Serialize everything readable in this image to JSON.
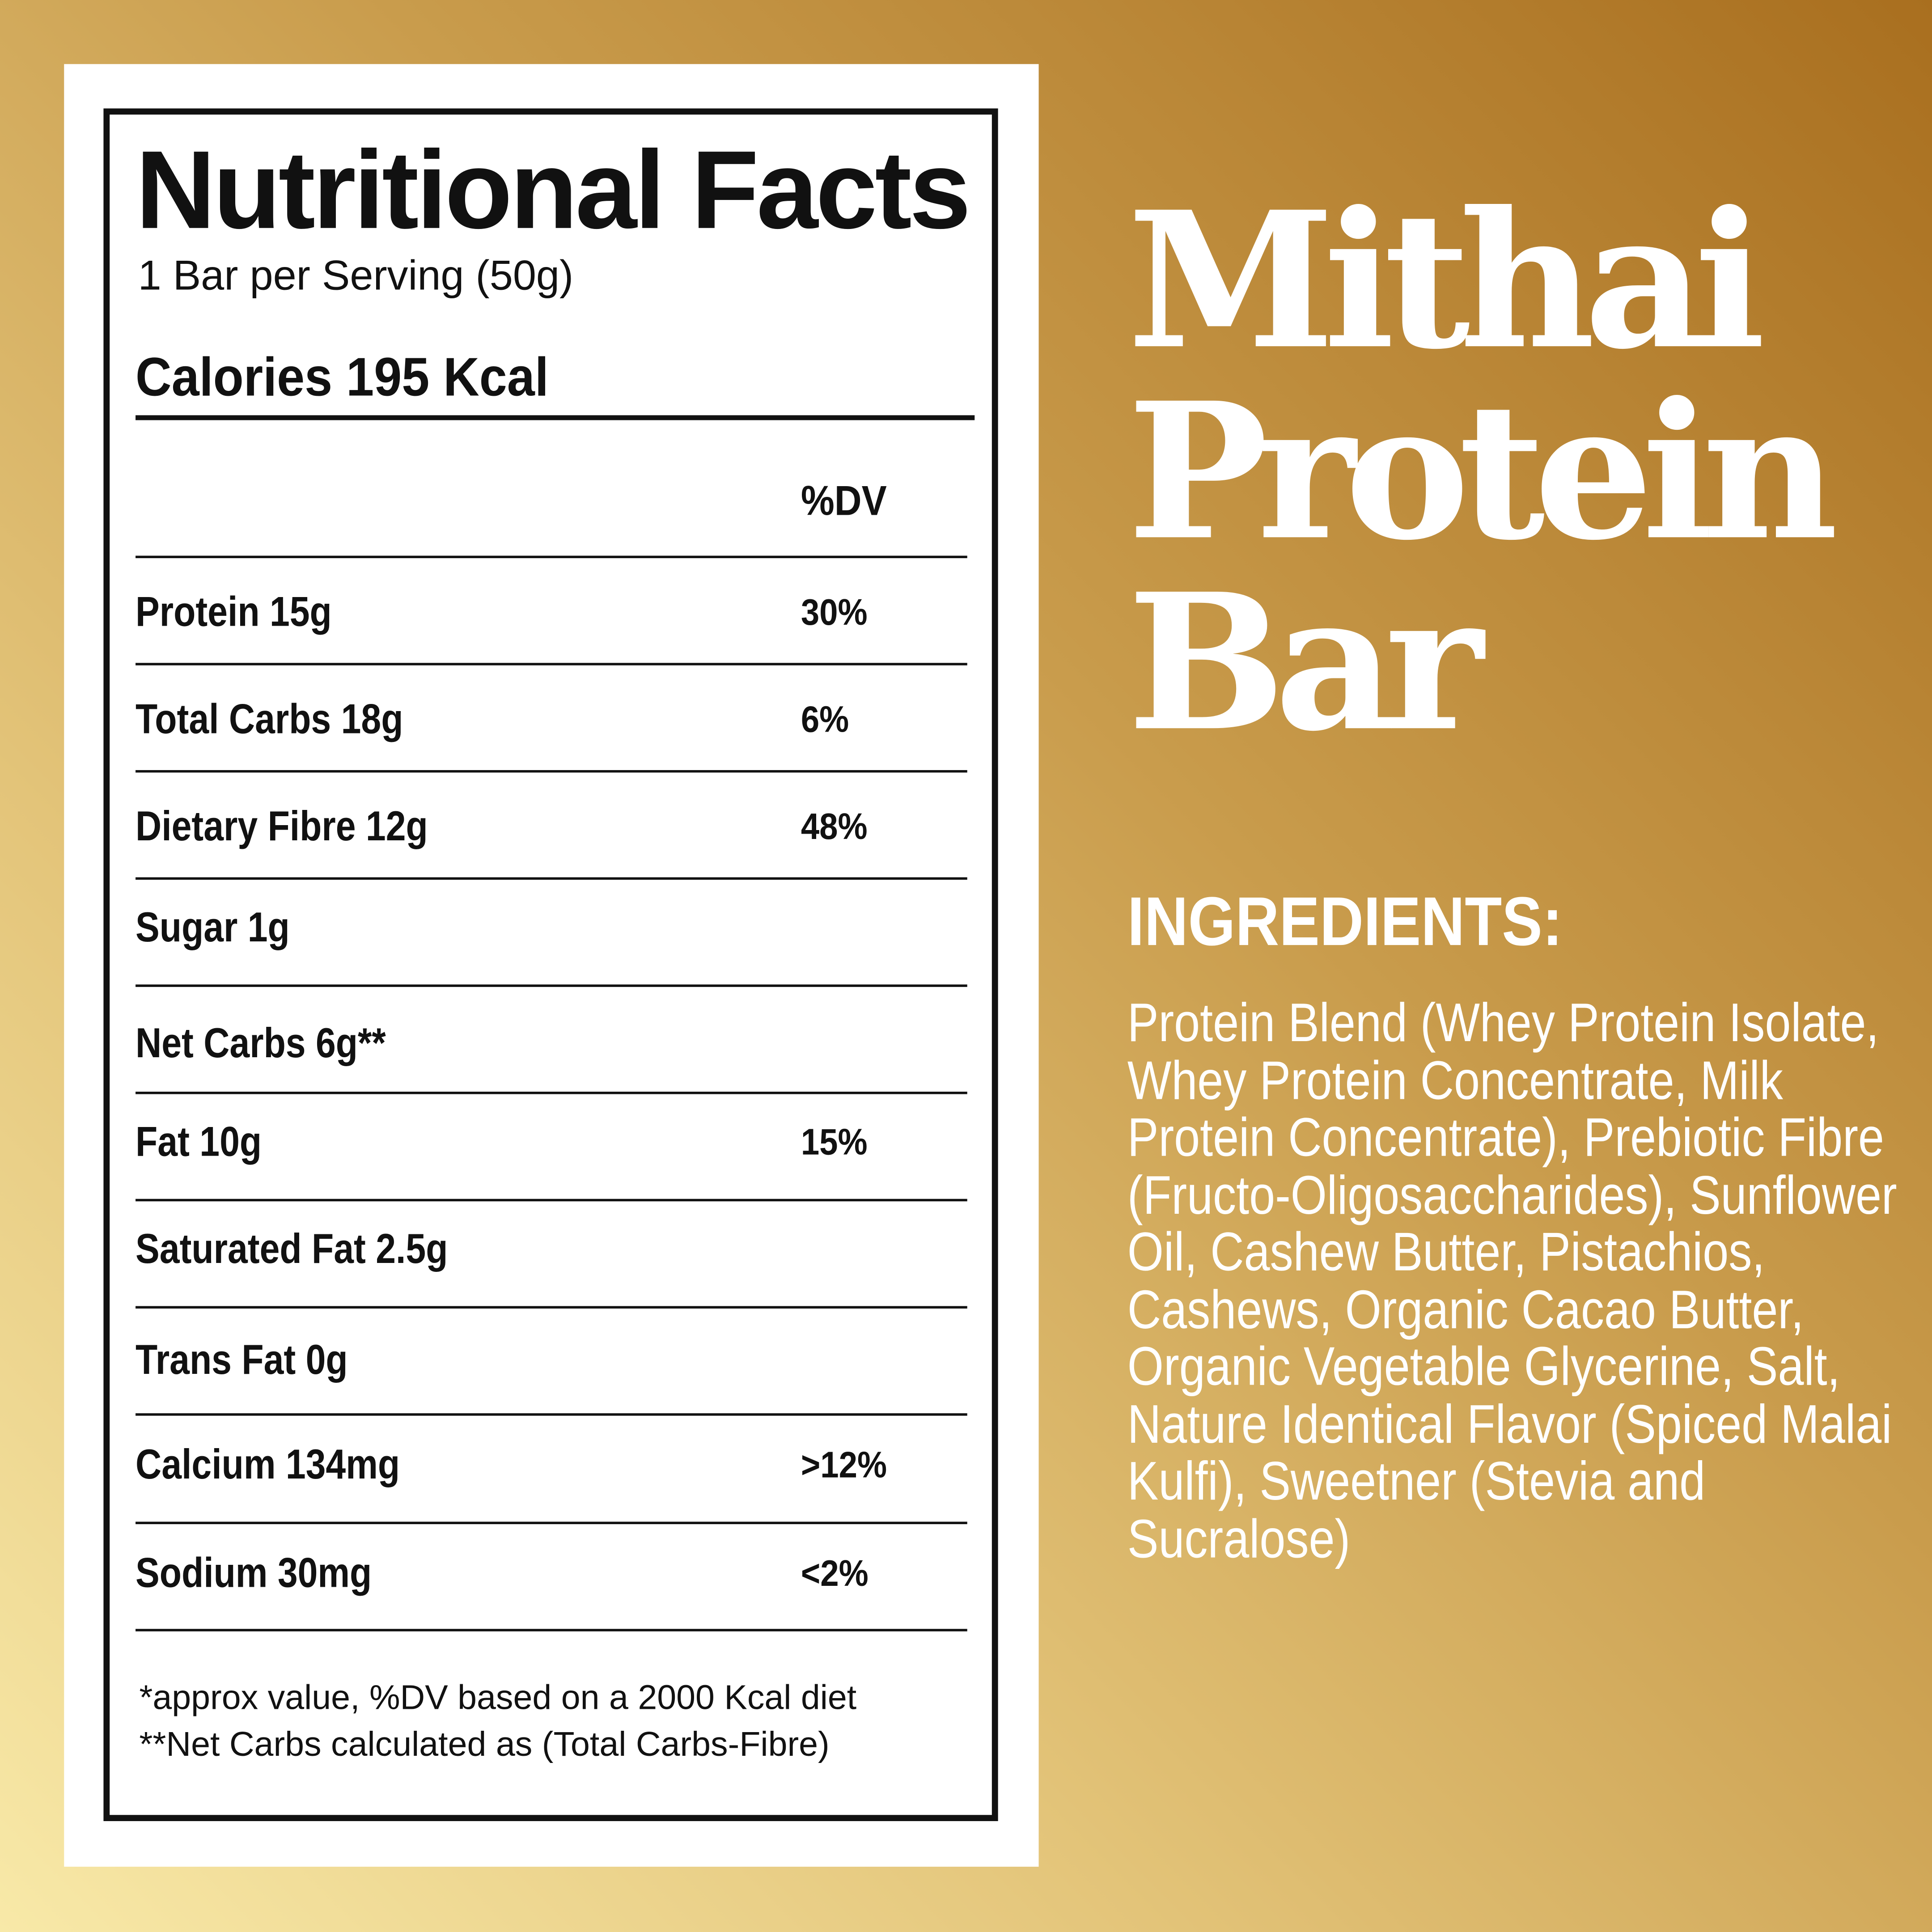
{
  "label": {
    "title": "Nutritional Facts",
    "serving": "1 Bar per Serving (50g)",
    "calories": "Calories 195 Kcal",
    "dv_header": "%DV",
    "rows": [
      {
        "label": "Protein 15g",
        "dv": "30%"
      },
      {
        "label": "Total Carbs 18g",
        "dv": "6%"
      },
      {
        "label": "Dietary Fibre 12g",
        "dv": "48%"
      },
      {
        "label": "Sugar 1g",
        "dv": ""
      },
      {
        "label": "Net Carbs 6g**",
        "dv": ""
      },
      {
        "label": "Fat 10g",
        "dv": "15%"
      },
      {
        "label": "Saturated Fat 2.5g",
        "dv": ""
      },
      {
        "label": "Trans Fat 0g",
        "dv": ""
      },
      {
        "label": "Calcium 134mg",
        "dv": ">12%"
      },
      {
        "label": "Sodium 30mg",
        "dv": "<2%"
      }
    ],
    "footnote1": "*approx value, %DV based on a 2000 Kcal diet",
    "footnote2": "**Net Carbs calculated as (Total Carbs-Fibre)"
  },
  "product": {
    "line1": "Mithai",
    "line2": "Protein",
    "line3": "Bar"
  },
  "ingredients": {
    "title": "INGREDIENTS:",
    "text": "Protein Blend (Whey Protein Isolate, Whey Protein Concentrate, Milk Protein Concentrate), Prebiotic Fibre (Fructo-Oligosaccharides), Sunflower Oil, Cashew Butter, Pistachios, Cashews, Organic Cacao Butter, Organic Vegetable Glycerine, Salt, Nature Identical Flavor (Spiced Malai Kulfi), Sweetner (Stevia and Sucralose)"
  },
  "colors": {
    "gradient_light": "#f8e9a8",
    "gradient_dark": "#a96f1f",
    "text_dark": "#111111",
    "panel": "#ffffff"
  }
}
